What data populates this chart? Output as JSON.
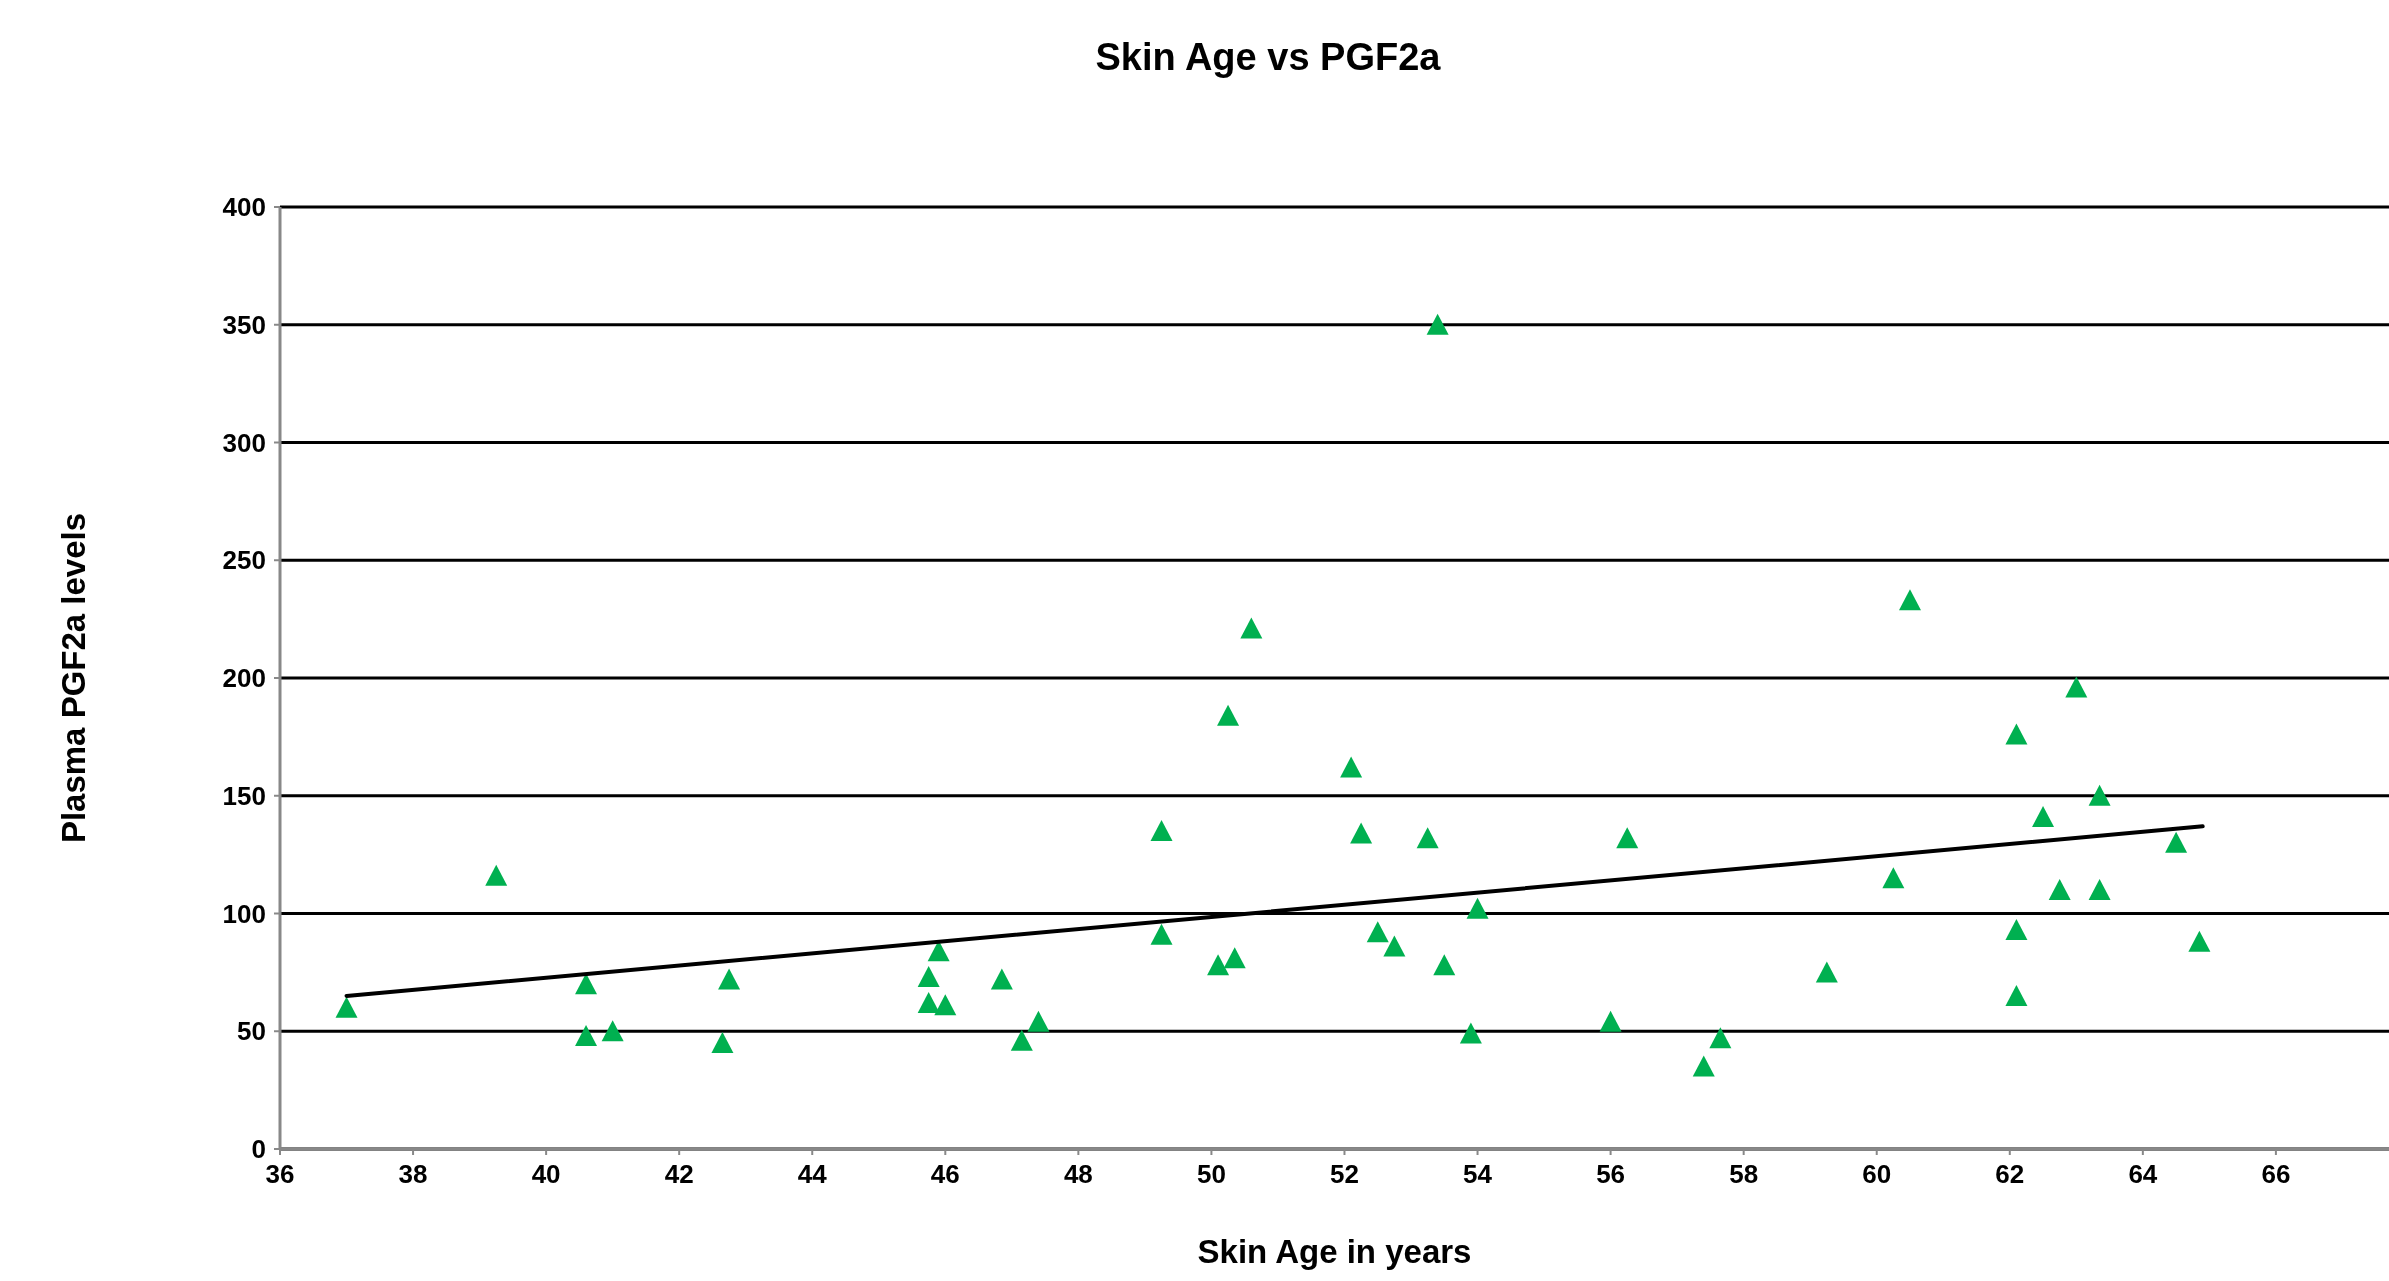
{
  "chart_data": {
    "type": "scatter",
    "title": "Skin Age vs PGF2a",
    "xlabel": "Skin Age in years",
    "ylabel": "Plasma  PGF2a levels",
    "xlim": [
      36,
      67.7
    ],
    "xticks": [
      36,
      38,
      40,
      42,
      44,
      46,
      48,
      50,
      52,
      54,
      56,
      58,
      60,
      62,
      64,
      66
    ],
    "ylim": [
      0,
      400
    ],
    "yticks": [
      0,
      50,
      100,
      150,
      200,
      250,
      300,
      350,
      400
    ],
    "grid": "y",
    "series": [
      {
        "color": "#00b050",
        "marker": "triangle",
        "x": [
          37.0,
          39.25,
          40.6,
          40.6,
          41.0,
          42.65,
          42.75,
          45.75,
          45.9,
          45.75,
          46.0,
          46.85,
          47.15,
          47.4,
          49.25,
          49.25,
          50.1,
          50.25,
          50.35,
          50.6,
          52.1,
          52.25,
          52.5,
          52.75,
          53.25,
          53.4,
          53.5,
          53.9,
          54.0,
          56.0,
          56.25,
          57.4,
          57.65,
          59.25,
          60.25,
          60.5,
          62.1,
          62.1,
          62.1,
          62.5,
          62.75,
          63.0,
          63.35,
          63.35,
          64.5,
          64.85
        ],
        "values": [
          60,
          116,
          70,
          48,
          50,
          45,
          72,
          73,
          84,
          62,
          61,
          72,
          46,
          54,
          135,
          91,
          78,
          184,
          81,
          221,
          162,
          134,
          92,
          86,
          132,
          350,
          78,
          49,
          102,
          54,
          132,
          35,
          47,
          75,
          115,
          233,
          176,
          93,
          65,
          141,
          110,
          196,
          150,
          110,
          130,
          88
        ]
      },
      {
        "type": "line",
        "color": "#000000",
        "marker": "none",
        "line_style": "solid",
        "x": [
          37.0,
          64.9
        ],
        "values": [
          65,
          137
        ]
      }
    ]
  }
}
